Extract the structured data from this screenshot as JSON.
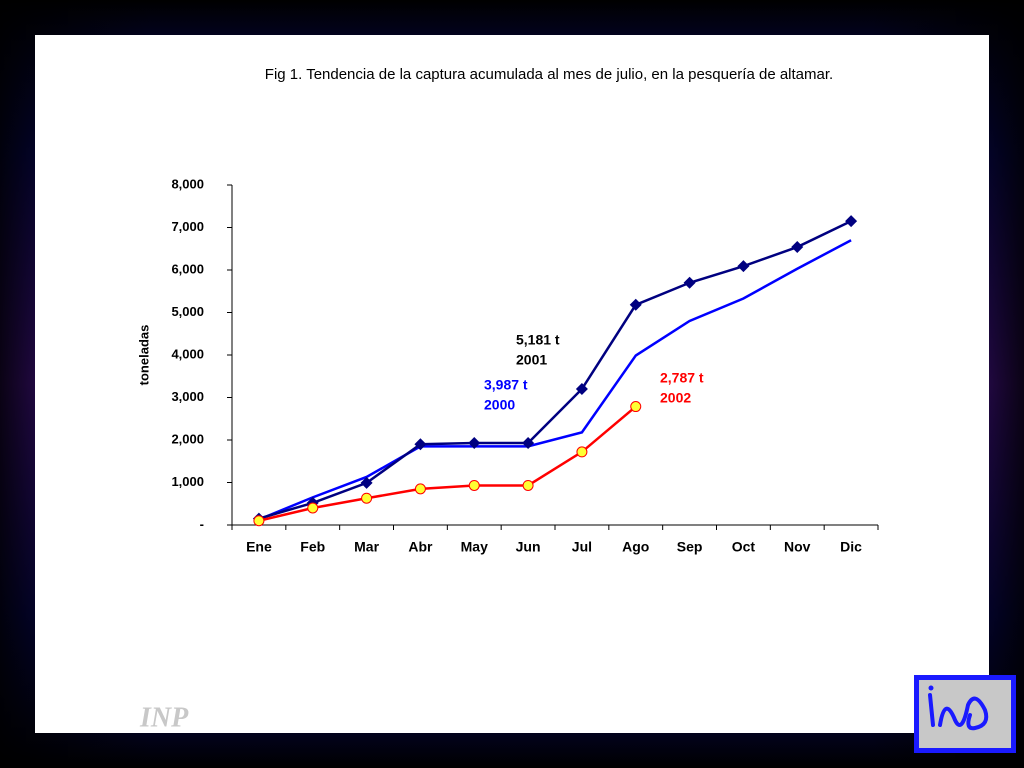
{
  "watermark": "INP",
  "chart_data": {
    "type": "line",
    "title": "Fig 1. Tendencia de la captura acumulada al mes de julio, en la pesquería de altamar.",
    "y_label": "toneladas",
    "categories": [
      "Ene",
      "Feb",
      "Mar",
      "Abr",
      "May",
      "Jun",
      "Jul",
      "Ago",
      "Sep",
      "Oct",
      "Nov",
      "Dic"
    ],
    "series": [
      {
        "name": "2000",
        "color": "#0000ff",
        "marker": "none",
        "values": [
          130,
          650,
          1130,
          1850,
          1850,
          1850,
          2180,
          3987,
          4800,
          5330,
          6030,
          6700
        ]
      },
      {
        "name": "2001",
        "color": "#000080",
        "marker": "diamond",
        "values": [
          150,
          520,
          990,
          1900,
          1930,
          1930,
          3200,
          5181,
          5700,
          6090,
          6540,
          7150
        ]
      },
      {
        "name": "2002",
        "color": "#ff0000",
        "marker": "circle",
        "marker_fill": "#ffff33",
        "values": [
          100,
          400,
          630,
          850,
          930,
          930,
          1720,
          2787,
          null,
          null,
          null,
          null
        ]
      }
    ],
    "annotations": [
      {
        "lines": [
          "5,181 t",
          "2001"
        ],
        "color": "#000000"
      },
      {
        "lines": [
          "3,987 t",
          "2000"
        ],
        "color": "#0000ff"
      },
      {
        "lines": [
          "2,787 t",
          "2002"
        ],
        "color": "#ff0000"
      }
    ],
    "ylim": [
      0,
      8000
    ],
    "yticks": [
      {
        "value": 0,
        "label": "-"
      },
      {
        "value": 1000,
        "label": "1,000"
      },
      {
        "value": 2000,
        "label": "2,000"
      },
      {
        "value": 3000,
        "label": "3,000"
      },
      {
        "value": 4000,
        "label": "4,000"
      },
      {
        "value": 5000,
        "label": "5,000"
      },
      {
        "value": 6000,
        "label": "6,000"
      },
      {
        "value": 7000,
        "label": "7,000"
      },
      {
        "value": 8000,
        "label": "8,000"
      }
    ],
    "grid": false
  }
}
